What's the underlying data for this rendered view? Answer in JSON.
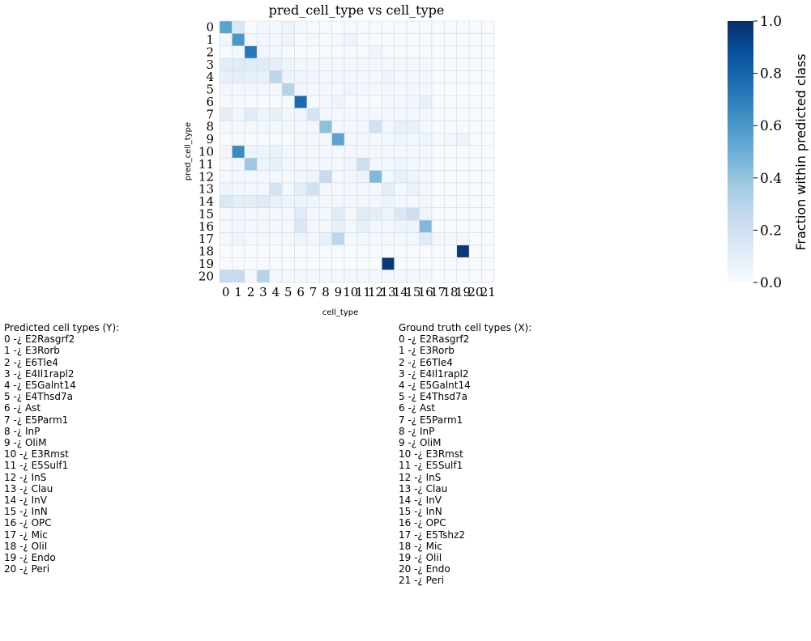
{
  "chart_data": {
    "type": "heatmap",
    "title": "pred_cell_type vs cell_type",
    "xlabel": "cell_type",
    "ylabel": "pred_cell_type",
    "x_categories": [
      "0",
      "1",
      "2",
      "3",
      "4",
      "5",
      "6",
      "7",
      "8",
      "9",
      "10",
      "11",
      "12",
      "13",
      "14",
      "15",
      "16",
      "17",
      "18",
      "19",
      "20",
      "21"
    ],
    "y_categories": [
      "0",
      "1",
      "2",
      "3",
      "4",
      "5",
      "6",
      "7",
      "8",
      "9",
      "10",
      "11",
      "12",
      "13",
      "14",
      "15",
      "16",
      "17",
      "18",
      "19",
      "20"
    ],
    "colorbar": {
      "label": "Fraction within predicted class",
      "range": [
        0.0,
        1.0
      ],
      "ticks": [
        "0.0",
        "0.2",
        "0.4",
        "0.6",
        "0.8",
        "1.0"
      ],
      "colormap": "Blues",
      "colors": [
        "#f7fbff",
        "#deebf7",
        "#c6dbef",
        "#9ecae1",
        "#6baed6",
        "#4292c6",
        "#2171b5",
        "#08519c",
        "#08306b"
      ]
    },
    "values": [
      [
        0.55,
        0.15,
        0,
        0.03,
        0.02,
        0.05,
        0.02,
        0.01,
        0.01,
        0,
        0.01,
        0.01,
        0.01,
        0.01,
        0.01,
        0.01,
        0.01,
        0,
        0,
        0,
        0,
        0
      ],
      [
        0.03,
        0.6,
        0.03,
        0.03,
        0.03,
        0.05,
        0.01,
        0.02,
        0.01,
        0.02,
        0.05,
        0.01,
        0.01,
        0.01,
        0.01,
        0.01,
        0.01,
        0,
        0,
        0,
        0,
        0
      ],
      [
        0.01,
        0.02,
        0.72,
        0.03,
        0.03,
        0.01,
        0.01,
        0.01,
        0.01,
        0.01,
        0.01,
        0.01,
        0.05,
        0.01,
        0.01,
        0.01,
        0.01,
        0,
        0,
        0,
        0,
        0
      ],
      [
        0.1,
        0.12,
        0.12,
        0.12,
        0.1,
        0.05,
        0.03,
        0.03,
        0.02,
        0.02,
        0.02,
        0.02,
        0.02,
        0.02,
        0.02,
        0.02,
        0.02,
        0,
        0,
        0,
        0,
        0
      ],
      [
        0.08,
        0.1,
        0.08,
        0.08,
        0.28,
        0.05,
        0.04,
        0.04,
        0.02,
        0.03,
        0.02,
        0.02,
        0.02,
        0.05,
        0.02,
        0.02,
        0.02,
        0,
        0,
        0,
        0,
        0
      ],
      [
        0.03,
        0.03,
        0.03,
        0.03,
        0.03,
        0.3,
        0.03,
        0.03,
        0.02,
        0.02,
        0.05,
        0.02,
        0.02,
        0.02,
        0.02,
        0.02,
        0.02,
        0,
        0,
        0,
        0,
        0
      ],
      [
        0.01,
        0.01,
        0.01,
        0.01,
        0.01,
        0.01,
        0.78,
        0.01,
        0.02,
        0.05,
        0.01,
        0.01,
        0.01,
        0.02,
        0.02,
        0.03,
        0.08,
        0,
        0,
        0,
        0,
        0
      ],
      [
        0.1,
        0.03,
        0.12,
        0.05,
        0.08,
        0.03,
        0.03,
        0.18,
        0.02,
        0.02,
        0.02,
        0.02,
        0.02,
        0.02,
        0.02,
        0.02,
        0.02,
        0,
        0,
        0,
        0,
        0
      ],
      [
        0.02,
        0.02,
        0.02,
        0.02,
        0.02,
        0.02,
        0.02,
        0.03,
        0.42,
        0.02,
        0.02,
        0.02,
        0.2,
        0.02,
        0.08,
        0.08,
        0.02,
        0,
        0,
        0,
        0,
        0
      ],
      [
        0.01,
        0.01,
        0.01,
        0.01,
        0.01,
        0.01,
        0.03,
        0.03,
        0.03,
        0.55,
        0.02,
        0.02,
        0.02,
        0.03,
        0.05,
        0.03,
        0.05,
        0.02,
        0.03,
        0.05,
        0,
        0
      ],
      [
        0.03,
        0.65,
        0.05,
        0.05,
        0.07,
        0.03,
        0.02,
        0.02,
        0.02,
        0.02,
        0.03,
        0.02,
        0.02,
        0.02,
        0.02,
        0.02,
        0.02,
        0,
        0,
        0,
        0,
        0
      ],
      [
        0.02,
        0.02,
        0.38,
        0.05,
        0.08,
        0.03,
        0.03,
        0.03,
        0.02,
        0.02,
        0.05,
        0.22,
        0.03,
        0.03,
        0.05,
        0.03,
        0.02,
        0,
        0,
        0,
        0,
        0
      ],
      [
        0.02,
        0.02,
        0.02,
        0.02,
        0.02,
        0.02,
        0.03,
        0.05,
        0.25,
        0.02,
        0.03,
        0.05,
        0.45,
        0.02,
        0.08,
        0.05,
        0.02,
        0,
        0,
        0,
        0,
        0
      ],
      [
        0.05,
        0.02,
        0.02,
        0.02,
        0.18,
        0.02,
        0.1,
        0.2,
        0.02,
        0.02,
        0.02,
        0.02,
        0.02,
        0.1,
        0.02,
        0.07,
        0.02,
        0,
        0,
        0,
        0,
        0
      ],
      [
        0.15,
        0.1,
        0.1,
        0.12,
        0.08,
        0.05,
        0.05,
        0.05,
        0.03,
        0.03,
        0.03,
        0.03,
        0.03,
        0.05,
        0.03,
        0.03,
        0.03,
        0,
        0,
        0,
        0,
        0
      ],
      [
        0.02,
        0.02,
        0.02,
        0.02,
        0.02,
        0.02,
        0.12,
        0.03,
        0.02,
        0.12,
        0.02,
        0.12,
        0.1,
        0.05,
        0.15,
        0.22,
        0.05,
        0,
        0,
        0,
        0,
        0
      ],
      [
        0.02,
        0.02,
        0.02,
        0.02,
        0.02,
        0.02,
        0.15,
        0.03,
        0.02,
        0.08,
        0.02,
        0.08,
        0.03,
        0.03,
        0.05,
        0.05,
        0.45,
        0,
        0,
        0,
        0,
        0
      ],
      [
        0.02,
        0.05,
        0.02,
        0.02,
        0.02,
        0.02,
        0.05,
        0.03,
        0.08,
        0.28,
        0.02,
        0.03,
        0.02,
        0.03,
        0.03,
        0.03,
        0.12,
        0.03,
        0.02,
        0.02,
        0,
        0
      ],
      [
        0,
        0,
        0,
        0,
        0,
        0,
        0,
        0,
        0,
        0,
        0,
        0,
        0,
        0,
        0,
        0,
        0,
        0,
        0,
        0.97,
        0,
        0
      ],
      [
        0,
        0,
        0,
        0,
        0,
        0,
        0,
        0,
        0,
        0,
        0,
        0,
        0,
        0.97,
        0,
        0,
        0,
        0,
        0,
        0,
        0,
        0
      ],
      [
        0.25,
        0.25,
        0.02,
        0.3,
        0.02,
        0.02,
        0.02,
        0.02,
        0.02,
        0.02,
        0.02,
        0.02,
        0.02,
        0.02,
        0.02,
        0.02,
        0.02,
        0,
        0,
        0,
        0,
        0
      ]
    ]
  },
  "legend_predicted": {
    "title": "Predicted cell types (Y):",
    "items": [
      "0 -¿ E2Rasgrf2",
      "1 -¿ E3Rorb",
      "2 -¿ E6Tle4",
      "3 -¿ E4Il1rapl2",
      "4 -¿ E5Galnt14",
      "5 -¿ E4Thsd7a",
      "6 -¿ Ast",
      "7 -¿ E5Parm1",
      "8 -¿ InP",
      "9 -¿ OliM",
      "10 -¿ E3Rmst",
      "11 -¿ E5Sulf1",
      "12 -¿ InS",
      "13 -¿ Clau",
      "14 -¿ InV",
      "15 -¿ InN",
      "16 -¿ OPC",
      "17 -¿ Mic",
      "18 -¿ OliI",
      "19 -¿ Endo",
      "20 -¿ Peri"
    ]
  },
  "legend_truth": {
    "title": "Ground truth cell types (X):",
    "items": [
      "0 -¿ E2Rasgrf2",
      "1 -¿ E3Rorb",
      "2 -¿ E6Tle4",
      "3 -¿ E4Il1rapl2",
      "4 -¿ E5Galnt14",
      "5 -¿ E4Thsd7a",
      "6 -¿ Ast",
      "7 -¿ E5Parm1",
      "8 -¿ InP",
      "9 -¿ OliM",
      "10 -¿ E3Rmst",
      "11 -¿ E5Sulf1",
      "12 -¿ InS",
      "13 -¿ Clau",
      "14 -¿ InV",
      "15 -¿ InN",
      "16 -¿ OPC",
      "17 -¿ E5Tshz2",
      "18 -¿ Mic",
      "19 -¿ OliI",
      "20 -¿ Endo",
      "21 -¿ Peri"
    ]
  }
}
